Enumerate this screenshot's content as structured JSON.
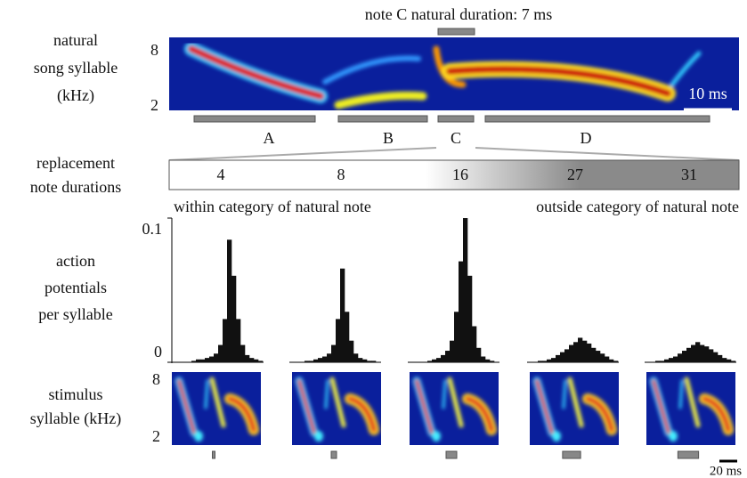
{
  "header": {
    "title": "note C natural duration: 7 ms"
  },
  "natural_syllable": {
    "label_lines": [
      "natural",
      "song syllable",
      "(kHz)"
    ],
    "freq_ticks": [
      8,
      2
    ],
    "scale_bar": "10 ms",
    "notes": [
      "A",
      "B",
      "C",
      "D"
    ]
  },
  "replacement": {
    "label_lines": [
      "replacement",
      "note durations"
    ],
    "durations": [
      4,
      8,
      16,
      27,
      31
    ],
    "within_label": "within category of natural note",
    "outside_label": "outside category of natural note"
  },
  "histogram": {
    "label_lines": [
      "action",
      "potentials",
      "per syllable"
    ],
    "ylim": [
      0,
      0.1
    ],
    "yticks": [
      0,
      0.1
    ],
    "panels": [
      {
        "values": [
          0,
          0,
          0,
          0,
          0.001,
          0.002,
          0.002,
          0.003,
          0.004,
          0.006,
          0.012,
          0.03,
          0.085,
          0.06,
          0.03,
          0.012,
          0.005,
          0.003,
          0.002,
          0.001
        ]
      },
      {
        "values": [
          0,
          0,
          0,
          0.001,
          0.001,
          0.002,
          0.003,
          0.004,
          0.006,
          0.012,
          0.03,
          0.065,
          0.035,
          0.015,
          0.006,
          0.003,
          0.002,
          0.001,
          0.001,
          0
        ]
      },
      {
        "values": [
          0,
          0,
          0,
          0,
          0.001,
          0.002,
          0.003,
          0.005,
          0.008,
          0.015,
          0.035,
          0.07,
          0.1,
          0.06,
          0.025,
          0.01,
          0.004,
          0.002,
          0.001,
          0
        ]
      },
      {
        "values": [
          0,
          0,
          0.001,
          0.001,
          0.002,
          0.003,
          0.005,
          0.007,
          0.009,
          0.012,
          0.014,
          0.017,
          0.015,
          0.013,
          0.01,
          0.008,
          0.006,
          0.004,
          0.002,
          0.001
        ]
      },
      {
        "values": [
          0,
          0,
          0.001,
          0.001,
          0.002,
          0.003,
          0.004,
          0.006,
          0.008,
          0.01,
          0.012,
          0.014,
          0.012,
          0.011,
          0.009,
          0.007,
          0.005,
          0.003,
          0.002,
          0.001
        ]
      }
    ]
  },
  "stimulus": {
    "label_lines": [
      "stimulus",
      "syllable (kHz)"
    ],
    "freq_ticks": [
      8,
      2
    ],
    "scale_bar": "20 ms"
  }
}
